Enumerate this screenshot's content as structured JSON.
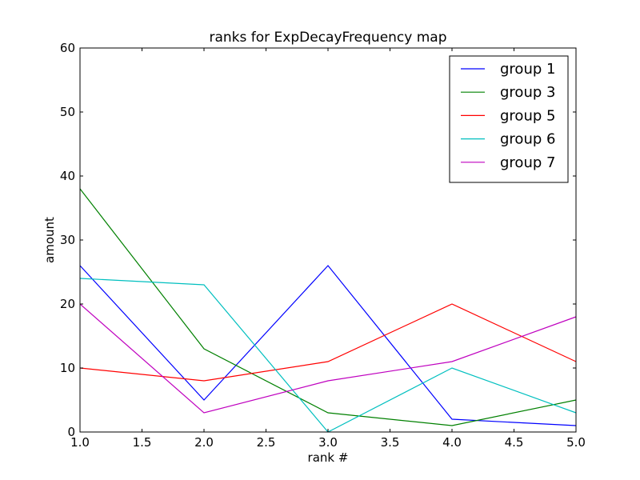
{
  "chart_data": {
    "type": "line",
    "title": "ranks for ExpDecayFrequency map",
    "xlabel": "rank #",
    "ylabel": "amount",
    "xlim": [
      1.0,
      5.0
    ],
    "ylim": [
      0,
      60
    ],
    "x": [
      1,
      2,
      3,
      4,
      5
    ],
    "x_ticks": [
      1.0,
      1.5,
      2.0,
      2.5,
      3.0,
      3.5,
      4.0,
      4.5,
      5.0
    ],
    "x_tick_labels": [
      "1.0",
      "1.5",
      "2.0",
      "2.5",
      "3.0",
      "3.5",
      "4.0",
      "4.5",
      "5.0"
    ],
    "y_ticks": [
      0,
      10,
      20,
      30,
      40,
      50,
      60
    ],
    "y_tick_labels": [
      "0",
      "10",
      "20",
      "30",
      "40",
      "50",
      "60"
    ],
    "grid": false,
    "legend_position": "top-right",
    "series": [
      {
        "name": "group 1",
        "color": "#0000ff",
        "values": [
          26,
          5,
          26,
          2,
          1
        ]
      },
      {
        "name": "group 3",
        "color": "#008000",
        "values": [
          38,
          13,
          3,
          1,
          5
        ]
      },
      {
        "name": "group 5",
        "color": "#ff0000",
        "values": [
          10,
          8,
          11,
          20,
          11
        ]
      },
      {
        "name": "group 6",
        "color": "#00bfbf",
        "values": [
          24,
          23,
          0,
          10,
          3
        ]
      },
      {
        "name": "group 7",
        "color": "#bf00bf",
        "values": [
          20,
          3,
          8,
          11,
          18
        ]
      }
    ]
  }
}
